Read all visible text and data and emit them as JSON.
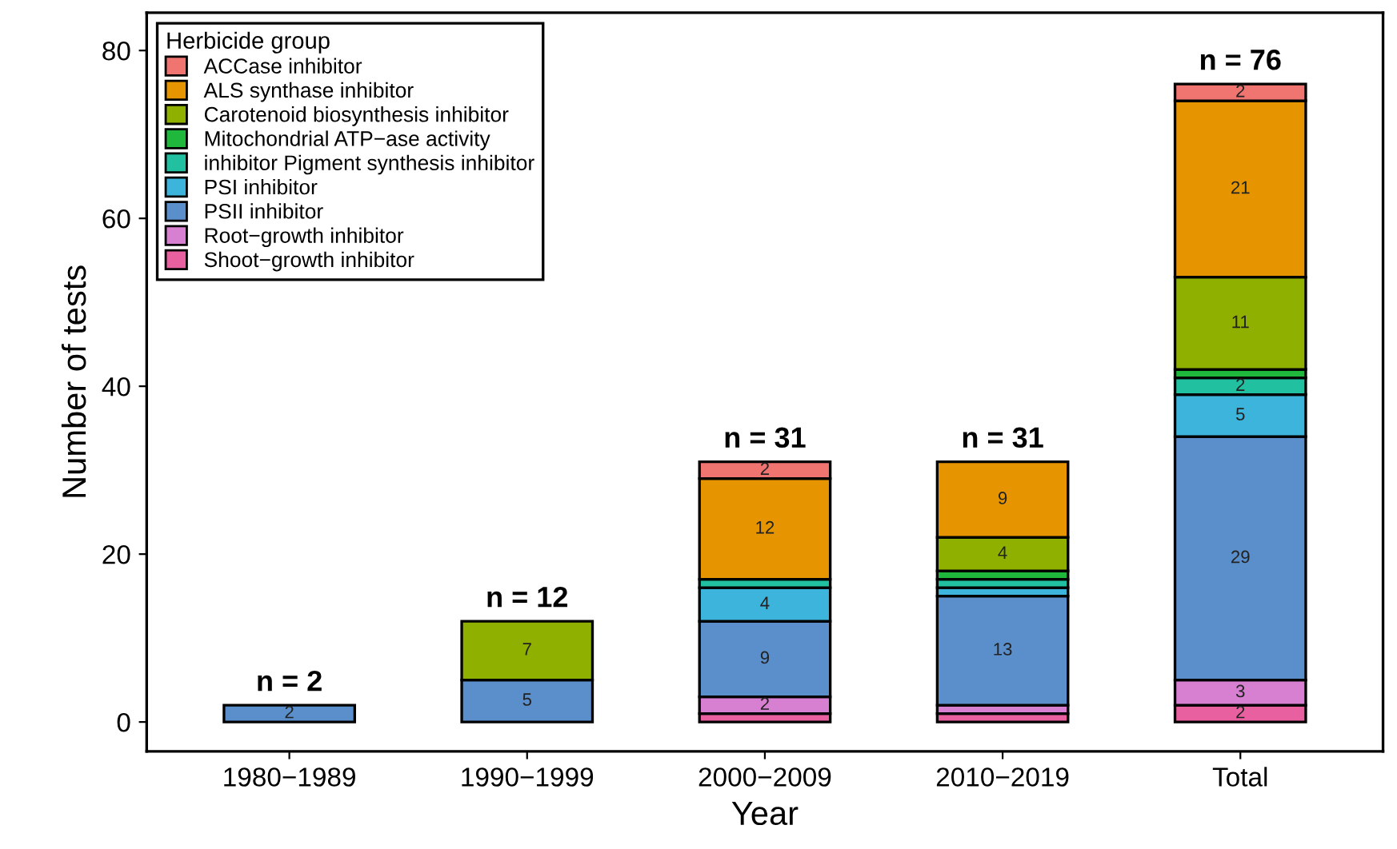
{
  "chart_data": {
    "type": "bar",
    "stacked": true,
    "xlabel": "Year",
    "ylabel": "Number of tests",
    "legend_title": "Herbicide group",
    "legend": "top left",
    "grid": false,
    "categories": [
      "1980−1989",
      "1990−1999",
      "2000−2009",
      "2010−2019",
      "Total"
    ],
    "ylim": [
      -3.5,
      84.5
    ],
    "yticks": [
      0,
      20,
      40,
      60,
      80
    ],
    "totals": [
      "n = 2",
      "n = 12",
      "n = 31",
      "n = 31",
      "n = 76"
    ],
    "series": [
      {
        "name": "Shoot−growth inhibitor",
        "color": "#e8609f",
        "values": [
          null,
          null,
          1,
          1,
          2
        ],
        "value_labels": [
          null,
          null,
          null,
          null,
          "2"
        ]
      },
      {
        "name": "Root−growth inhibitor",
        "color": "#d77fd0",
        "values": [
          null,
          null,
          2,
          1,
          3
        ],
        "value_labels": [
          null,
          null,
          "2",
          null,
          "3"
        ]
      },
      {
        "name": "PSII inhibitor",
        "color": "#5a8fcb",
        "values": [
          2,
          5,
          9,
          13,
          29
        ],
        "value_labels": [
          "2",
          "5",
          "9",
          "13",
          "29"
        ]
      },
      {
        "name": "PSI inhibitor",
        "color": "#3cb4dc",
        "values": [
          null,
          null,
          4,
          1,
          5
        ],
        "value_labels": [
          null,
          null,
          "4",
          null,
          "5"
        ]
      },
      {
        "name": "inhibitor Pigment synthesis inhibitor",
        "color": "#20c0a0",
        "values": [
          null,
          null,
          1,
          1,
          2
        ],
        "value_labels": [
          null,
          null,
          null,
          null,
          "2"
        ]
      },
      {
        "name": "Mitochondrial ATP−ase activity",
        "color": "#1fb83c",
        "values": [
          null,
          null,
          null,
          1,
          1
        ]
      },
      {
        "name": "Carotenoid biosynthesis inhibitor",
        "color": "#90b000",
        "values": [
          null,
          7,
          null,
          4,
          11
        ],
        "value_labels": [
          null,
          "7",
          null,
          "4",
          "11"
        ]
      },
      {
        "name": "ALS synthase inhibitor",
        "color": "#e69500",
        "values": [
          null,
          null,
          12,
          9,
          21
        ],
        "value_labels": [
          null,
          null,
          "12",
          "9",
          "21"
        ]
      },
      {
        "name": "ACCase inhibitor",
        "color": "#f07470",
        "values": [
          null,
          null,
          2,
          null,
          2
        ],
        "value_labels": [
          null,
          null,
          "2",
          null,
          "2"
        ]
      }
    ]
  }
}
